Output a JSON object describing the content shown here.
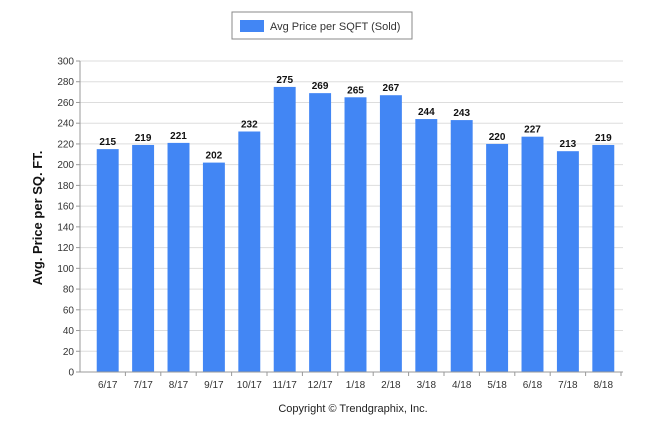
{
  "chart_data": {
    "type": "bar",
    "categories": [
      "6/17",
      "7/17",
      "8/17",
      "9/17",
      "10/17",
      "11/17",
      "12/17",
      "1/18",
      "2/18",
      "3/18",
      "4/18",
      "5/18",
      "6/18",
      "7/18",
      "8/18"
    ],
    "series": [
      {
        "name": "Avg Price per SQFT (Sold)",
        "values": [
          215,
          219,
          221,
          202,
          232,
          275,
          269,
          265,
          267,
          244,
          243,
          220,
          227,
          213,
          219
        ]
      }
    ],
    "title": "",
    "xlabel": "",
    "ylabel": "Avg. Price per SQ. FT.",
    "ylim": [
      0,
      300
    ],
    "yticks": [
      0,
      20,
      40,
      60,
      80,
      100,
      120,
      140,
      160,
      180,
      200,
      220,
      240,
      260,
      280,
      300
    ],
    "grid": true,
    "legend_position": "top-center",
    "show_data_labels": true,
    "colors": {
      "bar": "#4286f4",
      "grid": "#dddddd",
      "axis": "#999999"
    }
  },
  "footer": {
    "copyright": "Copyright © Trendgraphix, Inc."
  }
}
